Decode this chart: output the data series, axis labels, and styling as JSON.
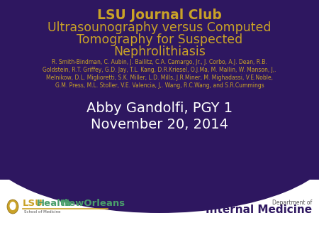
{
  "bg_color": "#ffffff",
  "purple_bg": "#2e1760",
  "gold_color": "#c9a227",
  "white_color": "#ffffff",
  "light_purple": "#4a3080",
  "title_line1": "LSU Journal Club",
  "title_line2": "Ultrasounography versus Computed",
  "title_line3": "Tomography for Suspected",
  "title_line4": "Nephrolithiasis",
  "author_line1": "R. Smith-Bindman, C. Aubin, J. Bailitz, C.A. Camargo, Jr., J. Corbo, A.J. Dean, R.B.",
  "author_line2": "Goldstein, R.T. Griffey, G.D. Jay, T.L. Kang, D.R.Kriesel, O.J.Ma, M. Mallin, W. Manson, J,.",
  "author_line3": "Melnikow, D.L. Miglioretti, S.K. Miller, L.D. Mills, J.R.Miner, M. Mighadassi, V.E.Noble,",
  "author_line4": "G.M. Press, M.L. Stoller, V.E. Valencia, J,. Wang, R.C.Wang, and S.R.Cummings",
  "presenter": "Abby Gandolfi, PGY 1",
  "date": "November 20, 2014",
  "dept_line1": "Department of",
  "dept_line2": "Internal Medicine",
  "lsu_text1": "LSU",
  "lsu_text2": "Health",
  "lsu_text3": "NewOrleans",
  "lsu_small": "School of Medicine",
  "green_color": "#4a9e6b",
  "gray_color": "#555555",
  "gold_line_color": "#c9a227"
}
